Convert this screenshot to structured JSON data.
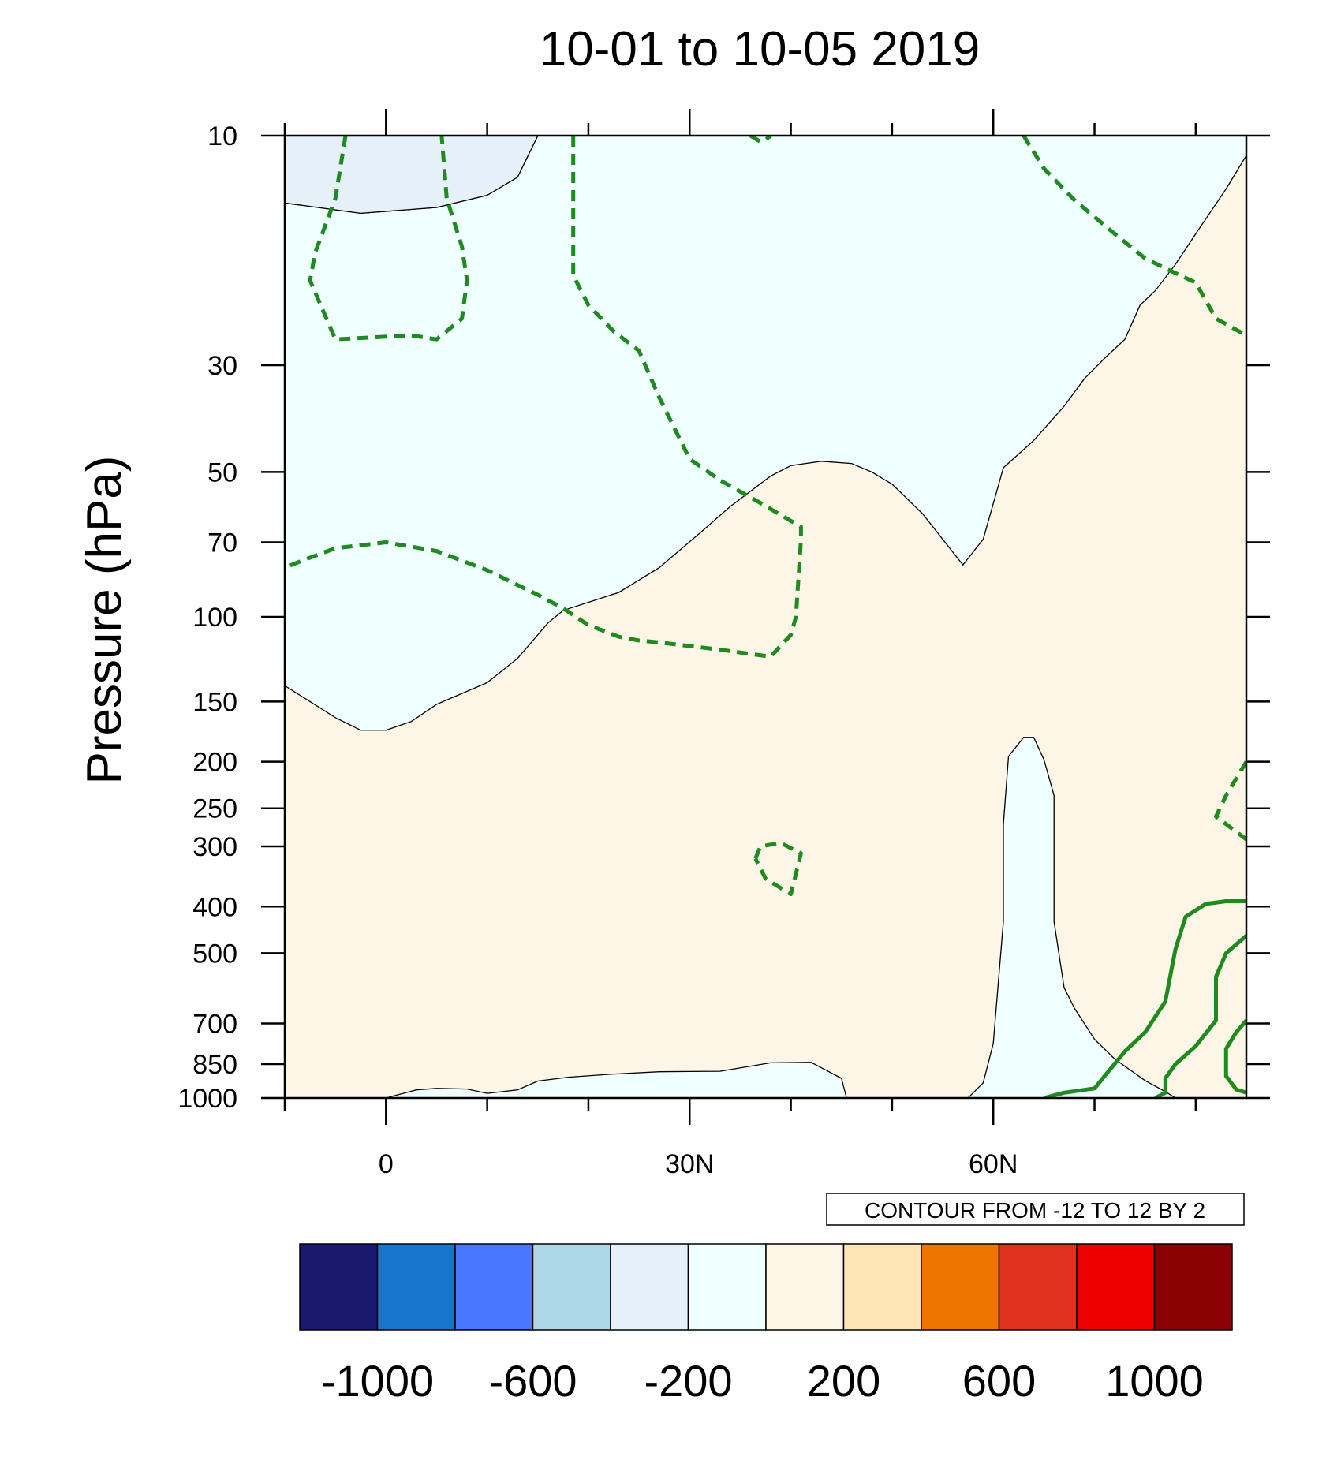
{
  "chart_data": {
    "type": "heatmap",
    "title": "10-01 to 10-05 2019",
    "xlabel": "",
    "ylabel": "Pressure (hPa)",
    "x_axis": {
      "range": [
        -10,
        85
      ],
      "major_ticks": [
        0,
        30,
        60
      ],
      "tick_labels": [
        "0",
        "30N",
        "60N"
      ],
      "minor_step": 10
    },
    "y_axis": {
      "scale": "log",
      "reversed": true,
      "range": [
        10,
        1000
      ],
      "tick_values": [
        10,
        30,
        50,
        70,
        100,
        150,
        200,
        250,
        300,
        400,
        500,
        700,
        850,
        1000
      ],
      "tick_labels": [
        "10",
        "30",
        "50",
        "70",
        "100",
        "150",
        "200",
        "250",
        "300",
        "400",
        "500",
        "700",
        "850",
        "1000"
      ]
    },
    "contour_info_label": "CONTOUR FROM -12 TO 12 BY 2",
    "contour_color": "#1f8a1f",
    "colorbar": {
      "colors": [
        "#191970",
        "#1874cd",
        "#4876ff",
        "#add8e6",
        "#e6f0f8",
        "#f0ffff",
        "#fdf5e6",
        "#ffe4b5",
        "#ee7600",
        "#e0301e",
        "#ee0000",
        "#8b0000"
      ],
      "boundaries": [
        -1000,
        -800,
        -600,
        -400,
        -200,
        0,
        200,
        400,
        600,
        800,
        1000
      ],
      "labels": [
        "-1000",
        "-600",
        "-200",
        "200",
        "600",
        "1000"
      ]
    },
    "regions": [
      {
        "name": "negative-200-to-0",
        "fill": "#f0ffff",
        "points": [
          [
            -10,
            10
          ],
          [
            15,
            10
          ],
          [
            13,
            12.2
          ],
          [
            10,
            13.3
          ],
          [
            5,
            14.1
          ],
          [
            -2.5,
            14.5
          ],
          [
            -10,
            13.8
          ],
          [
            -10,
            139
          ],
          [
            -5,
            162
          ],
          [
            -2.5,
            172
          ],
          [
            0,
            172
          ],
          [
            2.5,
            165
          ],
          [
            5,
            152
          ],
          [
            10,
            137
          ],
          [
            13,
            122
          ],
          [
            16,
            103
          ],
          [
            17.5,
            97
          ],
          [
            23,
            89
          ],
          [
            27,
            79
          ],
          [
            31,
            67
          ],
          [
            34,
            59
          ],
          [
            38,
            51
          ],
          [
            40,
            48.5
          ],
          [
            43,
            47.5
          ],
          [
            46,
            48
          ],
          [
            48,
            50
          ],
          [
            50,
            53
          ],
          [
            53,
            61
          ],
          [
            55,
            69
          ],
          [
            57,
            78
          ],
          [
            59,
            69
          ],
          [
            61,
            49
          ],
          [
            64,
            43
          ],
          [
            67,
            36.5
          ],
          [
            69,
            32
          ],
          [
            71,
            29
          ],
          [
            73,
            26.5
          ],
          [
            74.5,
            22.5
          ],
          [
            76,
            21
          ],
          [
            78,
            18.5
          ],
          [
            80,
            16
          ],
          [
            83,
            12.9
          ],
          [
            85,
            11
          ],
          [
            85,
            10
          ]
        ]
      },
      {
        "name": "negative-400-to-200-topleft",
        "fill": "#e6f0f8",
        "points": [
          [
            -10,
            10
          ],
          [
            15,
            10
          ],
          [
            13,
            12.2
          ],
          [
            10,
            13.3
          ],
          [
            5,
            14.1
          ],
          [
            -2.5,
            14.5
          ],
          [
            -10,
            13.8
          ]
        ]
      },
      {
        "name": "negative-200-to-0-surface",
        "fill": "#f0ffff",
        "points": [
          [
            0,
            1000
          ],
          [
            3,
            962
          ],
          [
            5,
            955
          ],
          [
            8,
            958
          ],
          [
            10,
            978
          ],
          [
            13,
            962
          ],
          [
            15,
            922
          ],
          [
            18,
            905
          ],
          [
            22,
            893
          ],
          [
            27,
            882
          ],
          [
            33,
            880
          ],
          [
            38,
            845
          ],
          [
            42,
            843
          ],
          [
            43,
            865
          ],
          [
            45,
            910
          ],
          [
            45.5,
            1000
          ]
        ]
      },
      {
        "name": "negative-200-to-0-column",
        "fill": "#f0ffff",
        "points": [
          [
            57.5,
            1000
          ],
          [
            59,
            930
          ],
          [
            60,
            770
          ],
          [
            61,
            430
          ],
          [
            61,
            270
          ],
          [
            61.5,
            195
          ],
          [
            63,
            178
          ],
          [
            64,
            178
          ],
          [
            65,
            198
          ],
          [
            66,
            235
          ],
          [
            66,
            320
          ],
          [
            66,
            430
          ],
          [
            67,
            590
          ],
          [
            68,
            650
          ],
          [
            70,
            755
          ],
          [
            72,
            830
          ],
          [
            75,
            920
          ],
          [
            77,
            970
          ],
          [
            78,
            1000
          ]
        ]
      }
    ],
    "contours": [
      {
        "name": "dashed-loop-upper-left",
        "dashed": true,
        "closed": false,
        "points": [
          [
            -4,
            10
          ],
          [
            -5,
            13.5
          ],
          [
            -7,
            17.5
          ],
          [
            -7.5,
            20
          ],
          [
            -5,
            26.5
          ],
          [
            2.5,
            26
          ],
          [
            5,
            26.5
          ],
          [
            7.5,
            24
          ],
          [
            8,
            20
          ],
          [
            7.5,
            17
          ],
          [
            6,
            13.5
          ],
          [
            5.5,
            10
          ]
        ]
      },
      {
        "name": "dashed-line-midtop",
        "dashed": true,
        "closed": false,
        "points": [
          [
            18.5,
            10
          ],
          [
            18.5,
            19.5
          ],
          [
            20,
            22.5
          ],
          [
            22.5,
            25.5
          ],
          [
            25,
            28
          ],
          [
            27,
            35
          ],
          [
            30,
            47
          ],
          [
            33,
            52
          ],
          [
            37,
            58
          ],
          [
            41,
            65
          ],
          [
            41,
            69
          ],
          [
            40.5,
            100
          ],
          [
            40,
            109
          ],
          [
            38,
            121
          ],
          [
            33,
            117
          ],
          [
            27,
            113
          ],
          [
            25,
            112
          ],
          [
            23,
            110
          ],
          [
            20,
            104
          ],
          [
            17.5,
            96
          ],
          [
            15,
            90
          ],
          [
            10,
            80
          ],
          [
            5,
            73
          ],
          [
            0,
            70
          ],
          [
            -5,
            72
          ],
          [
            -8,
            76
          ],
          [
            -10,
            79
          ]
        ]
      },
      {
        "name": "dashed-tiny-top",
        "dashed": true,
        "closed": false,
        "points": [
          [
            36,
            10
          ],
          [
            37,
            10.3
          ],
          [
            37.5,
            10.2
          ],
          [
            38,
            10
          ]
        ]
      },
      {
        "name": "dashed-line-upper-right",
        "dashed": true,
        "closed": false,
        "points": [
          [
            63,
            10
          ],
          [
            65,
            11.7
          ],
          [
            68,
            13.6
          ],
          [
            72,
            16
          ],
          [
            75,
            18
          ],
          [
            78,
            19.3
          ],
          [
            80,
            20.2
          ],
          [
            82,
            24
          ],
          [
            85,
            26
          ]
        ]
      },
      {
        "name": "dashed-curve-right",
        "dashed": true,
        "closed": false,
        "points": [
          [
            85,
            200
          ],
          [
            83,
            235
          ],
          [
            82,
            260
          ],
          [
            85,
            290
          ]
        ]
      },
      {
        "name": "solid-loop-center",
        "dashed": true,
        "closed": false,
        "points": [
          [
            36.5,
            318
          ],
          [
            37,
            300
          ],
          [
            39,
            295
          ],
          [
            41,
            310
          ],
          [
            40,
            377
          ],
          [
            37.5,
            350
          ],
          [
            36.5,
            318
          ]
        ]
      },
      {
        "name": "solid-line-lower-right-1",
        "dashed": false,
        "closed": false,
        "points": [
          [
            65,
            1000
          ],
          [
            67,
            975
          ],
          [
            70,
            955
          ],
          [
            71,
            900
          ],
          [
            73,
            800
          ],
          [
            75,
            730
          ],
          [
            77,
            630
          ],
          [
            78,
            490
          ],
          [
            79,
            420
          ],
          [
            81,
            395
          ],
          [
            83,
            390
          ],
          [
            85,
            390
          ]
        ]
      },
      {
        "name": "solid-line-lower-right-2",
        "dashed": false,
        "closed": false,
        "points": [
          [
            76,
            1000
          ],
          [
            77,
            975
          ],
          [
            77,
            910
          ],
          [
            78,
            850
          ],
          [
            80,
            780
          ],
          [
            82,
            690
          ],
          [
            82,
            560
          ],
          [
            83,
            500
          ],
          [
            85,
            460
          ]
        ]
      },
      {
        "name": "solid-line-lower-right-3",
        "dashed": false,
        "closed": false,
        "points": [
          [
            85,
            690
          ],
          [
            84,
            730
          ],
          [
            83,
            790
          ],
          [
            83,
            900
          ],
          [
            84,
            960
          ],
          [
            85,
            975
          ]
        ]
      }
    ]
  }
}
